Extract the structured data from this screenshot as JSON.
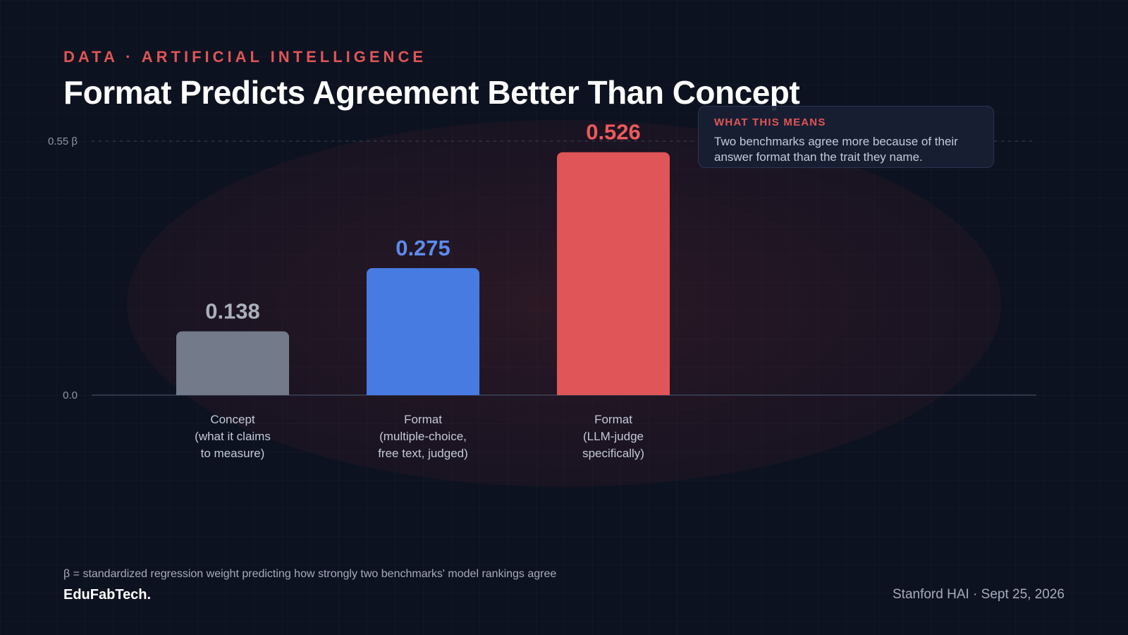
{
  "header": {
    "eyebrow": "DATA · ARTIFICIAL INTELLIGENCE",
    "title": "Format Predicts Agreement Better Than Concept"
  },
  "callout": {
    "heading": "WHAT THIS MEANS",
    "body": "Two benchmarks agree more because of their answer format than the trait they name."
  },
  "chart_data": {
    "type": "bar",
    "categories": [
      [
        "Concept",
        "(what it claims",
        "to measure)"
      ],
      [
        "Format",
        "(multiple-choice,",
        "free text, judged)"
      ],
      [
        "Format",
        "(LLM-judge",
        "specifically)"
      ]
    ],
    "values": [
      0.138,
      0.275,
      0.526
    ],
    "value_labels": [
      "0.138",
      "0.275",
      "0.526"
    ],
    "colors": [
      "#737a89",
      "#477be2",
      "#e05557"
    ],
    "label_colors": [
      "#a9afbb",
      "#5c8bee",
      "#ec5a5c"
    ],
    "ylim": [
      0,
      0.55
    ],
    "yticks": [
      "0.0",
      "0.55 β"
    ],
    "grid": false
  },
  "footer": {
    "footnote": "β = standardized regression weight predicting how strongly two benchmarks' model rankings agree",
    "brand": "EduFabTech.",
    "source": "Stanford HAI · Sept 25, 2026"
  }
}
